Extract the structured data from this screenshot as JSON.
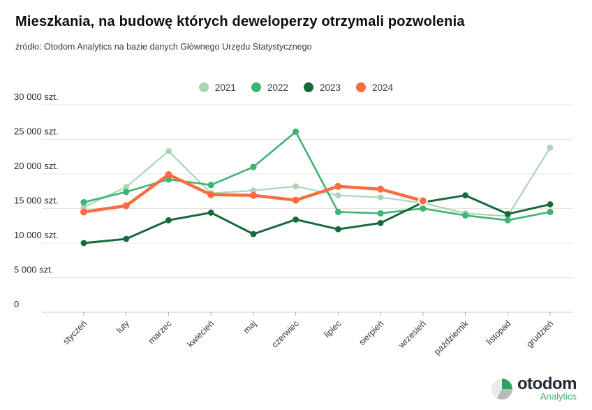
{
  "title": "Mieszkania, na budowę których deweloperzy otrzymali pozwolenia",
  "source": "źródło: Otodom Analytics na bazie danych Głównego Urzędu Statystycznego",
  "logo": {
    "brand": "otodom",
    "sub": "Analytics"
  },
  "chart_data": {
    "type": "line",
    "title": "Mieszkania, na budowę których deweloperzy otrzymali pozwolenia",
    "unit": "szt.",
    "ylim": [
      0,
      30000
    ],
    "grid": "horizontal",
    "legend_position": "top-center",
    "x_tick_rotation": -45,
    "categories": [
      "styczeń",
      "luty",
      "marzec",
      "kwiecień",
      "maj",
      "czerwiec",
      "lipiec",
      "sierpień",
      "wrzesień",
      "październik",
      "listopad",
      "grudzień"
    ],
    "y_ticks": [
      {
        "value": 30000,
        "label": "30 000 szt."
      },
      {
        "value": 25000,
        "label": "25 000 szt."
      },
      {
        "value": 20000,
        "label": "20 000 szt."
      },
      {
        "value": 15000,
        "label": "15 000 szt."
      },
      {
        "value": 10000,
        "label": "10 000 szt."
      },
      {
        "value": 5000,
        "label": "5 000 szt."
      },
      {
        "value": 0,
        "label": "0"
      }
    ],
    "series": [
      {
        "name": "2021",
        "color": "#abd6b5",
        "values": [
          15200,
          18100,
          23300,
          17200,
          17600,
          18200,
          16900,
          16600,
          15800,
          14300,
          13900,
          23800
        ]
      },
      {
        "name": "2022",
        "color": "#3eb474",
        "values": [
          15900,
          17400,
          19200,
          18400,
          21000,
          26100,
          14500,
          14300,
          15000,
          14000,
          13300,
          14500
        ]
      },
      {
        "name": "2023",
        "color": "#176939",
        "values": [
          10000,
          10600,
          13300,
          14400,
          11300,
          13400,
          12000,
          12900,
          15900,
          16900,
          14200,
          15600
        ]
      },
      {
        "name": "2024",
        "color": "#f96c3e",
        "end_ring": true,
        "values": [
          14500,
          15400,
          19900,
          17000,
          16900,
          16200,
          18200,
          17800,
          16100,
          null,
          null,
          null
        ]
      }
    ]
  }
}
